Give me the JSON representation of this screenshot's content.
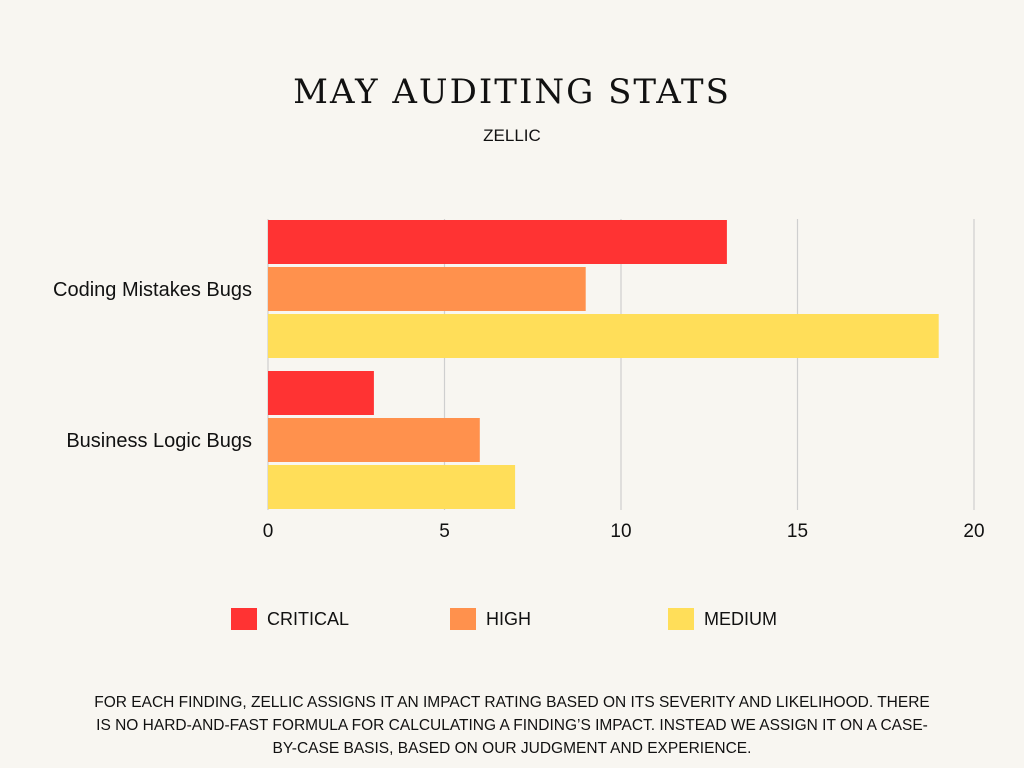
{
  "header": {
    "title": "MAY AUDITING STATS",
    "subtitle": "ZELLIC"
  },
  "chart_data": {
    "type": "bar",
    "orientation": "horizontal",
    "categories": [
      "Coding Mistakes Bugs",
      "Business Logic Bugs"
    ],
    "series": [
      {
        "name": "CRITICAL",
        "color": "#ff3333",
        "values": [
          13,
          3
        ]
      },
      {
        "name": "HIGH",
        "color": "#ff914d",
        "values": [
          9,
          6
        ]
      },
      {
        "name": "MEDIUM",
        "color": "#ffde59",
        "values": [
          19,
          7
        ]
      }
    ],
    "xlim": [
      0,
      20
    ],
    "xticks": [
      "0",
      "5",
      "10",
      "15",
      "20"
    ],
    "xticks_values": [
      0,
      5,
      10,
      15,
      20
    ],
    "grid": true,
    "legend_position": "bottom"
  },
  "footnote": "For each finding, Zellic assigns it an impact rating based on its severity and likelihood. There is no hard-and-fast formula for calculating a finding’s impact. Instead we assign it on a case-by-case basis, based on our judgment and experience."
}
